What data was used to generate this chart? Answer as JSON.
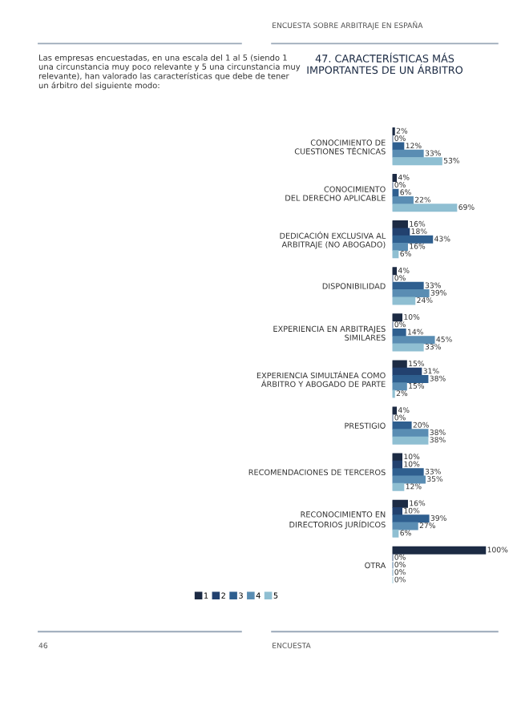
{
  "chart_data": {
    "type": "bar",
    "orientation": "horizontal",
    "title": "47. CARACTERÍSTICAS MÁS IMPORTANTES DE UN ÁRBITRO",
    "categories": [
      "CONOCIMIENTO DE\nCUESTIONES TÉCNICAS",
      "CONOCIMIENTO\nDEL DERECHO APLICABLE",
      "DEDICACIÓN EXCLUSIVA AL\nARBITRAJE (NO ABOGADO)",
      "DISPONIBILIDAD",
      "EXPERIENCIA EN ARBITRAJES\nSIMILARES",
      "EXPERIENCIA SIMULTÁNEA COMO\nÁRBITRO Y ABOGADO DE PARTE",
      "PRESTIGIO",
      "RECOMENDACIONES DE TERCEROS",
      "RECONOCIMIENTO EN\nDIRECTORIOS JURÍDICOS",
      "OTRA"
    ],
    "series": [
      {
        "name": "1",
        "color": "#1c2b44",
        "values": [
          2,
          4,
          16,
          4,
          10,
          15,
          4,
          10,
          16,
          100
        ],
        "value_labels": [
          "2%",
          "4%",
          "16%",
          "4%",
          "10%",
          "15%",
          "4%",
          "10%",
          "16%",
          "100%"
        ]
      },
      {
        "name": "2",
        "color": "#22416f",
        "values": [
          0,
          0,
          18,
          0,
          0,
          31,
          0,
          10,
          10,
          0
        ],
        "value_labels": [
          "0%",
          "0%",
          "18%",
          "0%",
          "0%",
          "31%",
          "0%",
          "10%",
          "10%",
          "0%"
        ]
      },
      {
        "name": "3",
        "color": "#2f5f8f",
        "values": [
          12,
          6,
          43,
          33,
          14,
          38,
          20,
          33,
          39,
          0
        ],
        "value_labels": [
          "12%",
          "6%",
          "43%",
          "33%",
          "14%",
          "38%",
          "20%",
          "33%",
          "39%",
          "0%"
        ]
      },
      {
        "name": "4",
        "color": "#5a8db3",
        "values": [
          33,
          22,
          16,
          39,
          45,
          15,
          38,
          35,
          27,
          0
        ],
        "value_labels": [
          "33%",
          "22%",
          "16%",
          "39%",
          "45%",
          "15%",
          "38%",
          "35%",
          "27%",
          "0%"
        ]
      },
      {
        "name": "5",
        "color": "#8fbfd2",
        "values": [
          53,
          69,
          6,
          24,
          33,
          2,
          38,
          12,
          6,
          0
        ],
        "value_labels": [
          "53%",
          "69%",
          "6%",
          "24%",
          "33%",
          "2%",
          "38%",
          "12%",
          "6%",
          "0%"
        ]
      }
    ],
    "legend": "bottom left",
    "grid": false,
    "annotations": [
      "ENCUESTA SOBRE ARBITRAJE EN ESPAÑA",
      "Las empresas encuestadas, en una escala del 1 al 5 (siendo 1 una circunstancia muy poco relevante y 5 una circunstancia muy relevante), han valorado las características que debe de tener un árbitro del siguiente modo:",
      "46",
      "ENCUESTA"
    ]
  }
}
